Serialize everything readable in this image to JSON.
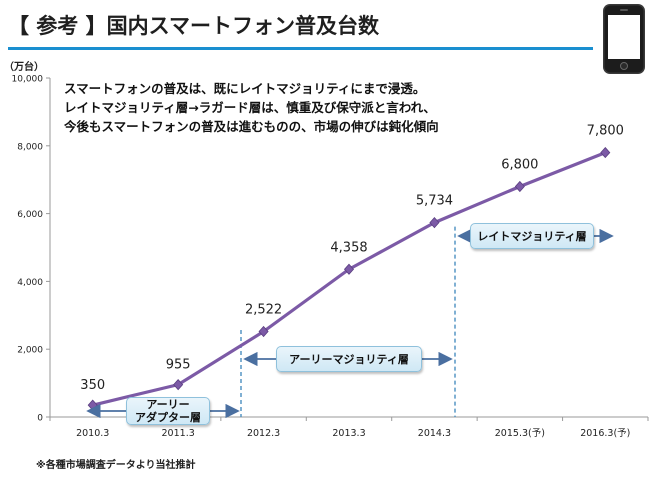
{
  "header": {
    "title": "【 参考 】国内スマートフォン普及台数"
  },
  "annotation": {
    "lines": [
      "スマートフォンの普及は、既にレイトマジョリティにまで浸透。",
      "レイトマジョリティ層→ラガード層は、慎重及び保守派と言われ、",
      "今後もスマートフォンの普及は進むものの、市場の伸びは鈍化傾向"
    ]
  },
  "phases": {
    "early_adopter": [
      "アーリー",
      "アダプター層"
    ],
    "early_majority": "アーリーマジョリティ層",
    "late_majority": "レイトマジョリティ層"
  },
  "footer": {
    "source": "※各種市場調査データより当社推計"
  },
  "colors": {
    "accent": "#1a8fd0",
    "series": "#7c5aa6",
    "arrow": "#4a6fa0",
    "divider": "#4a8fc0"
  },
  "chart_data": {
    "type": "line",
    "ylabel": "（万台）",
    "ylim": [
      0,
      10000
    ],
    "yticks": [
      0,
      2000,
      4000,
      6000,
      8000,
      10000
    ],
    "ytick_labels": [
      "0",
      "2,000",
      "4,000",
      "6,000",
      "8,000",
      "10,000"
    ],
    "categories": [
      "2010.3",
      "2011.3",
      "2012.3",
      "2013.3",
      "2014.3",
      "2015.3(予)",
      "2016.3(予)"
    ],
    "values": [
      350,
      955,
      2522,
      4358,
      5734,
      6800,
      7800
    ],
    "value_labels": [
      "350",
      "955",
      "2,522",
      "4,358",
      "5,734",
      "6,800",
      "7,800"
    ],
    "grid": false,
    "legend": "none"
  }
}
